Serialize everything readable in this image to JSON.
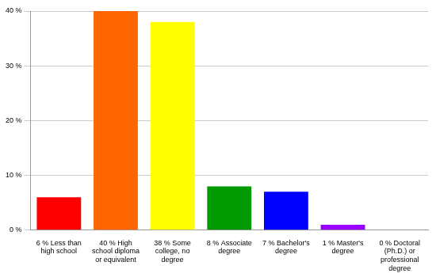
{
  "chart_data": {
    "type": "bar",
    "categories": [
      "6 % Less than high school",
      "40 % High school diploma or equivalent",
      "38 % Some college, no degree",
      "8 % Associate degree",
      "7 % Bachelor's degree",
      "1 % Master's degree",
      "0 % Doctoral (Ph.D.) or professional degree"
    ],
    "values": [
      6,
      40,
      38,
      8,
      7,
      1,
      0
    ],
    "colors": [
      "#ff0000",
      "#ff6600",
      "#ffff00",
      "#009900",
      "#0000ff",
      "#9900ff",
      "#ff00ff"
    ],
    "ylim": [
      0,
      40
    ],
    "yticks": [
      {
        "value": 0,
        "label": "0 %"
      },
      {
        "value": 10,
        "label": "10 %"
      },
      {
        "value": 20,
        "label": "20 %"
      },
      {
        "value": 30,
        "label": "30 %"
      },
      {
        "value": 40,
        "label": "40 %"
      }
    ],
    "grid": true
  }
}
